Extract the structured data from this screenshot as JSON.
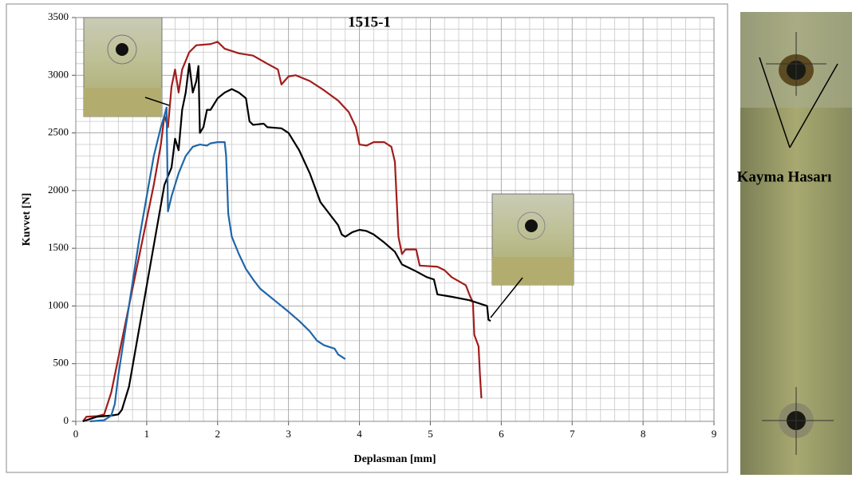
{
  "chart_data": {
    "type": "line",
    "title": "1515-1",
    "xlabel": "Deplasman [mm]",
    "ylabel": "Kuvvet [N]",
    "annotation": "Kayma Hasarı",
    "xlim": [
      0,
      9
    ],
    "ylim": [
      0,
      3500
    ],
    "xticks": [
      0,
      1,
      2,
      3,
      4,
      5,
      6,
      7,
      8,
      9
    ],
    "yticks": [
      0,
      500,
      1000,
      1500,
      2000,
      2500,
      3000,
      3500
    ],
    "xminorgrid": [
      0.2,
      0.4,
      0.6,
      0.8,
      1.2,
      1.4,
      1.6,
      1.8,
      2.2,
      2.4,
      2.6,
      2.8,
      3.2,
      3.4,
      3.6,
      3.8,
      4.2,
      4.4,
      4.6,
      4.8,
      5.2,
      5.4,
      5.6,
      5.8,
      6.2,
      6.4,
      6.6,
      6.8,
      7.2,
      7.4,
      7.6,
      7.8,
      8.2,
      8.4,
      8.6,
      8.8
    ],
    "yminorgrid": [
      100,
      200,
      300,
      400,
      600,
      700,
      800,
      900,
      1100,
      1200,
      1300,
      1400,
      1600,
      1700,
      1800,
      1900,
      2100,
      2200,
      2300,
      2400,
      2600,
      2700,
      2800,
      2900,
      3100,
      3200,
      3300,
      3400
    ],
    "grid": true,
    "series": [
      {
        "color": "#a31c1c",
        "x": [
          0.1,
          0.15,
          0.3,
          0.4,
          0.5,
          0.6,
          0.7,
          0.8,
          0.9,
          1.0,
          1.1,
          1.2,
          1.25,
          1.3,
          1.35,
          1.4,
          1.45,
          1.5,
          1.6,
          1.7,
          1.9,
          2.0,
          2.1,
          2.2,
          2.3,
          2.5,
          2.7,
          2.85,
          2.9,
          3.0,
          3.1,
          3.3,
          3.5,
          3.7,
          3.85,
          3.95,
          4.0,
          4.1,
          4.2,
          4.35,
          4.45,
          4.5,
          4.55,
          4.6,
          4.65,
          4.8,
          4.85,
          5.1,
          5.2,
          5.3,
          5.5,
          5.55,
          5.6,
          5.62,
          5.68,
          5.7,
          5.72
        ],
        "values": [
          0,
          40,
          45,
          60,
          250,
          550,
          850,
          1150,
          1450,
          1750,
          2050,
          2400,
          2650,
          2550,
          2900,
          3050,
          2850,
          3050,
          3200,
          3260,
          3270,
          3290,
          3230,
          3210,
          3190,
          3170,
          3100,
          3050,
          2920,
          2990,
          3000,
          2950,
          2870,
          2780,
          2680,
          2550,
          2400,
          2390,
          2420,
          2420,
          2380,
          2250,
          1600,
          1450,
          1490,
          1490,
          1350,
          1340,
          1310,
          1250,
          1180,
          1100,
          1030,
          750,
          650,
          400,
          200
        ]
      },
      {
        "color": "#000000",
        "x": [
          0.1,
          0.3,
          0.5,
          0.6,
          0.65,
          0.75,
          0.85,
          0.95,
          1.05,
          1.15,
          1.25,
          1.35,
          1.4,
          1.45,
          1.5,
          1.55,
          1.6,
          1.65,
          1.7,
          1.73,
          1.75,
          1.8,
          1.85,
          1.9,
          2.0,
          2.1,
          2.2,
          2.3,
          2.4,
          2.45,
          2.5,
          2.65,
          2.7,
          2.9,
          3.0,
          3.15,
          3.3,
          3.45,
          3.6,
          3.7,
          3.75,
          3.8,
          3.9,
          4.0,
          4.1,
          4.2,
          4.35,
          4.5,
          4.6,
          4.8,
          4.95,
          5.05,
          5.1,
          5.3,
          5.55,
          5.8,
          5.82,
          5.85
        ],
        "values": [
          0,
          40,
          50,
          60,
          100,
          300,
          650,
          1000,
          1350,
          1700,
          2050,
          2200,
          2450,
          2350,
          2700,
          2850,
          3100,
          2850,
          2950,
          3080,
          2500,
          2550,
          2700,
          2700,
          2800,
          2850,
          2880,
          2850,
          2800,
          2600,
          2570,
          2580,
          2550,
          2540,
          2500,
          2350,
          2150,
          1900,
          1780,
          1700,
          1620,
          1600,
          1640,
          1660,
          1650,
          1620,
          1550,
          1470,
          1360,
          1300,
          1250,
          1230,
          1100,
          1080,
          1050,
          1000,
          880,
          870
        ]
      },
      {
        "color": "#1f67a8",
        "x": [
          0.2,
          0.4,
          0.5,
          0.55,
          0.6,
          0.7,
          0.8,
          0.9,
          1.0,
          1.1,
          1.2,
          1.25,
          1.28,
          1.3,
          1.35,
          1.45,
          1.55,
          1.65,
          1.75,
          1.85,
          1.9,
          2.0,
          2.1,
          2.12,
          2.15,
          2.2,
          2.3,
          2.4,
          2.5,
          2.6,
          2.8,
          3.0,
          3.15,
          3.3,
          3.4,
          3.5,
          3.65,
          3.7,
          3.8
        ],
        "values": [
          0,
          10,
          50,
          150,
          400,
          800,
          1200,
          1600,
          1950,
          2300,
          2550,
          2650,
          2720,
          1820,
          1950,
          2150,
          2300,
          2380,
          2400,
          2390,
          2410,
          2420,
          2420,
          2300,
          1800,
          1600,
          1450,
          1320,
          1230,
          1150,
          1050,
          950,
          870,
          780,
          700,
          660,
          630,
          580,
          540
        ]
      }
    ]
  }
}
